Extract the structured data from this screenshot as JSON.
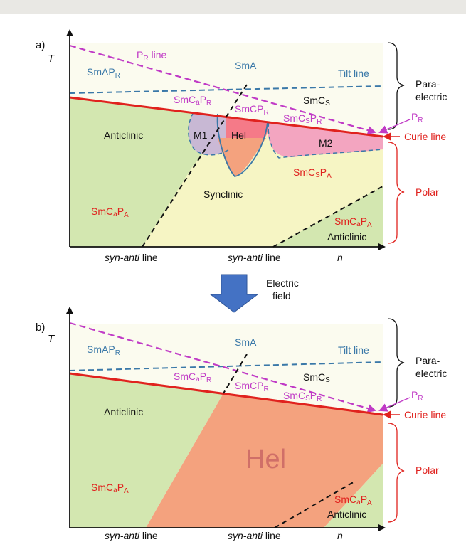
{
  "colors": {
    "blue": "#3a78a8",
    "magenta": "#c03ac6",
    "red": "#e0221e",
    "black": "#111111",
    "green": "#d3e7b0",
    "yellow": "#f6f5c4",
    "pale": "#fbfbef",
    "salmon": "#f4a27e",
    "pink": "#f39cc0",
    "lavender": "#c7b2d8",
    "arrow": "#4472c4"
  },
  "a": {
    "label": "a)",
    "T": "T",
    "pr_line": "P",
    "pr_line_sub": "R",
    "pr_line_suffix": " line",
    "smapr": "SmAP",
    "smapr_sub": "R",
    "sma": "SmA",
    "tilt_line": "Tilt line",
    "smcs": "SmC",
    "smcs_sub": "S",
    "smcapr": "SmC",
    "smcapr_a": "a",
    "smcapr_p": "P",
    "smcapr_sub": "R",
    "smcpr": "SmCP",
    "smcpr_sub": "R",
    "smcspr": "SmC",
    "smcspr_s": "S",
    "smcspr_p": "P",
    "smcspr_sub": "R",
    "m1": "M1",
    "hel": "Hel",
    "m2": "M2",
    "anticlinic": "Anticlinic",
    "smcapa": "SmC",
    "smcapa_a": "a",
    "smcapa_p": "P",
    "smcapa_sub": "A",
    "synclinic": "Synclinic",
    "smcspa": "SmC",
    "smcspa_s": "S",
    "smcspa_p": "P",
    "smcspa_sub": "A",
    "smcapa2": "SmC",
    "smcapa2_a": "a",
    "smcapa2_p": "P",
    "smcapa2_sub": "A",
    "anticlinic2": "Anticlinic",
    "syn_anti_1": "syn-anti",
    "line_word_1": " line",
    "syn_anti_2": "syn-anti",
    "line_word_2": " line",
    "n": "n",
    "para_electric_1": "Para-",
    "para_electric_2": "electric",
    "pr_right": "P",
    "pr_right_sub": "R",
    "curie_line": "Curie line",
    "polar": "Polar"
  },
  "arrow_label_1": "Electric",
  "arrow_label_2": "field",
  "b": {
    "label": "b)",
    "T": "T",
    "smapr": "SmAP",
    "smapr_sub": "R",
    "sma": "SmA",
    "tilt_line": "Tilt line",
    "smcs": "SmC",
    "smcs_sub": "S",
    "smcapr": "SmC",
    "smcapr_a": "a",
    "smcapr_p": "P",
    "smcapr_sub": "R",
    "smcpr": "SmCP",
    "smcpr_sub": "R",
    "smcspr": "SmC",
    "smcspr_s": "S",
    "smcspr_p": "P",
    "smcspr_sub": "R",
    "anticlinic": "Anticlinic",
    "smcapa": "SmC",
    "smcapa_a": "a",
    "smcapa_p": "P",
    "smcapa_sub": "A",
    "hel": "Hel",
    "smcapa2": "SmC",
    "smcapa2_a": "a",
    "smcapa2_p": "P",
    "smcapa2_sub": "A",
    "anticlinic2": "Anticlinic",
    "syn_anti_1": "syn-anti",
    "line_word_1": " line",
    "syn_anti_2": "syn-anti",
    "line_word_2": " line",
    "n": "n",
    "para_electric_1": "Para-",
    "para_electric_2": "electric",
    "pr_right": "P",
    "pr_right_sub": "R",
    "curie_line": "Curie line",
    "polar": "Polar"
  }
}
